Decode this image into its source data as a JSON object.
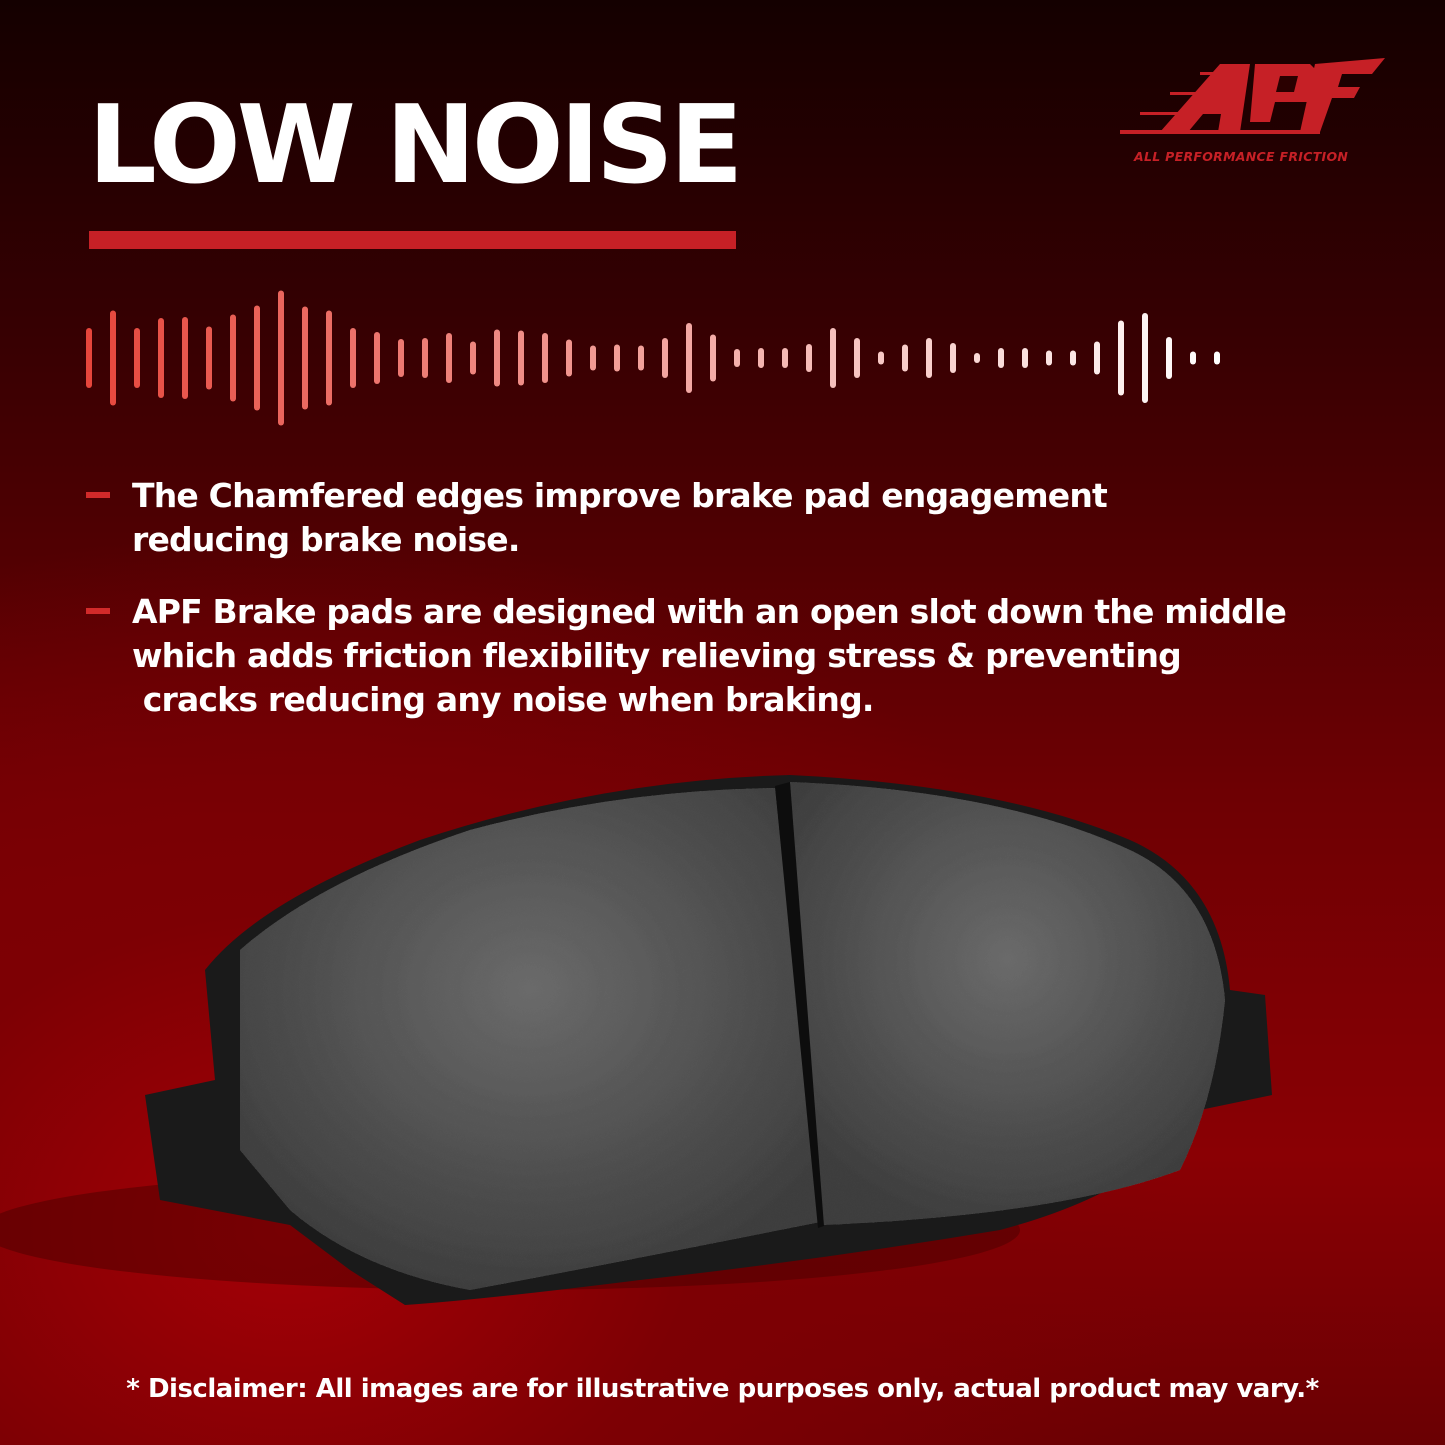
{
  "title": "LOW NOISE",
  "logo": {
    "text": "APF",
    "tagline": "ALL PERFORMANCE FRICTION",
    "color": "#c62026"
  },
  "bullets": [
    {
      "text": "The Chamfered edges improve brake pad engagement\nreducing brake noise."
    },
    {
      "text": "APF Brake pads are designed with an open slot down the middle\nwhich adds friction flexibility relieving stress & preventing\n cracks reducing any noise when braking."
    }
  ],
  "disclaimer": "* Disclaimer: All images are for illustrative purposes only, actual product may vary.*",
  "colors": {
    "accent": "#c62026",
    "background": "#7d0004",
    "text": "#ffffff"
  },
  "icons": [
    "sound-wave-icon",
    "brake-pad-image"
  ]
}
